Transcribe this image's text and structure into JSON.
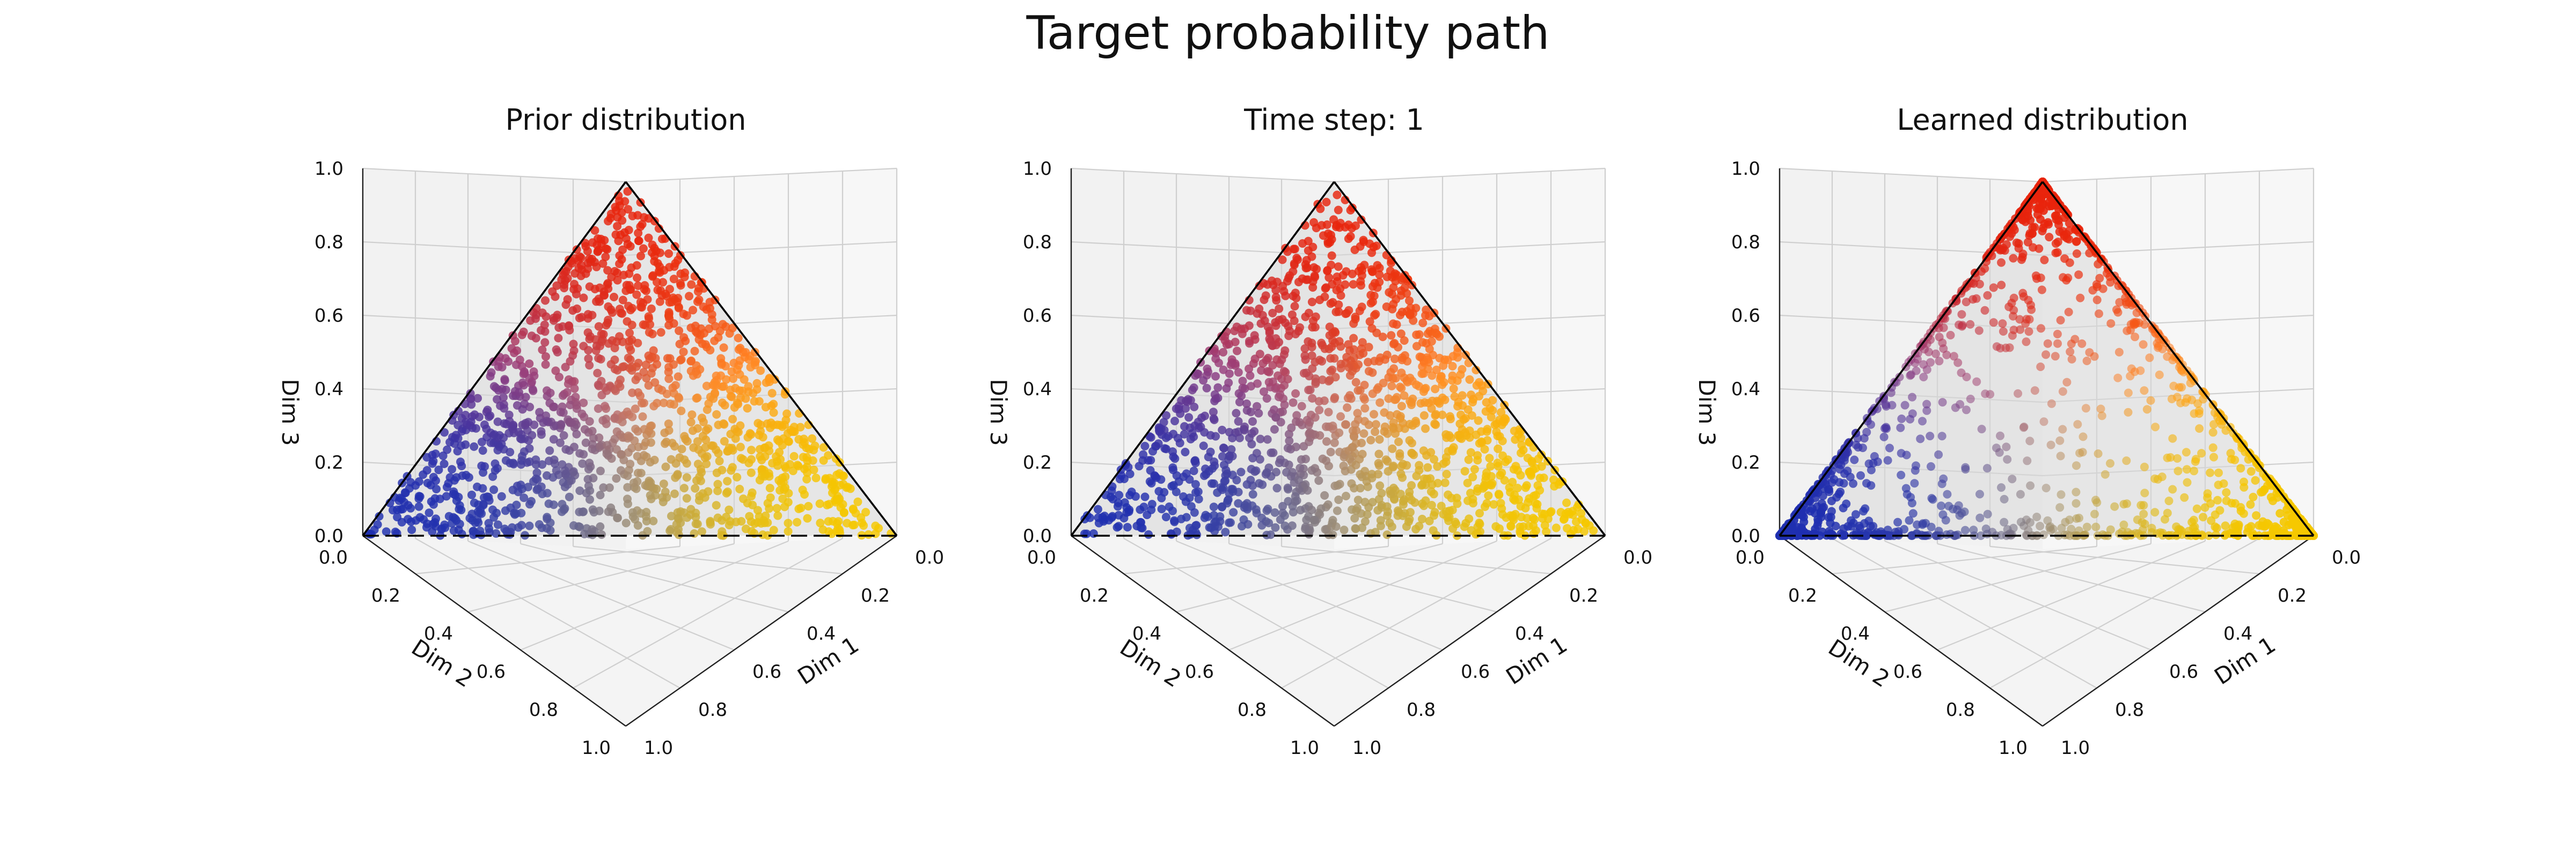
{
  "figure_title": "Target probability path",
  "colors": {
    "pane": "#f2f2f2",
    "pane_side": "#f7f7f7",
    "grid": "#cfcfcf",
    "simplex_fill": "#d9d9d9",
    "edge": "#000000"
  },
  "chart_data": [
    {
      "type": "scatter",
      "title": "Prior distribution",
      "kind": "uniform",
      "n_points": 1400,
      "xlabel": "Dim 1",
      "ylabel": "Dim 2",
      "zlabel": "Dim 3",
      "xlim": [
        0,
        1
      ],
      "ylim": [
        0,
        1
      ],
      "zlim": [
        0,
        1
      ],
      "ticks": [
        "0.0",
        "0.2",
        "0.4",
        "0.6",
        "0.8",
        "1.0"
      ],
      "color_anchors": {
        "dim1": "#f5c800",
        "dim2": "#1f2fb0",
        "dim3": "#e8240c"
      }
    },
    {
      "type": "scatter",
      "title": "Time step: 1",
      "kind": "uniform",
      "n_points": 1400,
      "xlabel": "Dim 1",
      "ylabel": "Dim 2",
      "zlabel": "Dim 3",
      "xlim": [
        0,
        1
      ],
      "ylim": [
        0,
        1
      ],
      "zlim": [
        0,
        1
      ],
      "ticks": [
        "0.0",
        "0.2",
        "0.4",
        "0.6",
        "0.8",
        "1.0"
      ],
      "color_anchors": {
        "dim1": "#f5c800",
        "dim2": "#1f2fb0",
        "dim3": "#e8240c"
      }
    },
    {
      "type": "scatter",
      "title": "Learned distribution",
      "kind": "concentrated",
      "n_points": 1400,
      "xlabel": "Dim 1",
      "ylabel": "Dim 2",
      "zlabel": "Dim 3",
      "xlim": [
        0,
        1
      ],
      "ylim": [
        0,
        1
      ],
      "zlim": [
        0,
        1
      ],
      "ticks": [
        "0.0",
        "0.2",
        "0.4",
        "0.6",
        "0.8",
        "1.0"
      ],
      "color_anchors": {
        "dim1": "#f5c800",
        "dim2": "#1f2fb0",
        "dim3": "#e8240c"
      }
    }
  ]
}
